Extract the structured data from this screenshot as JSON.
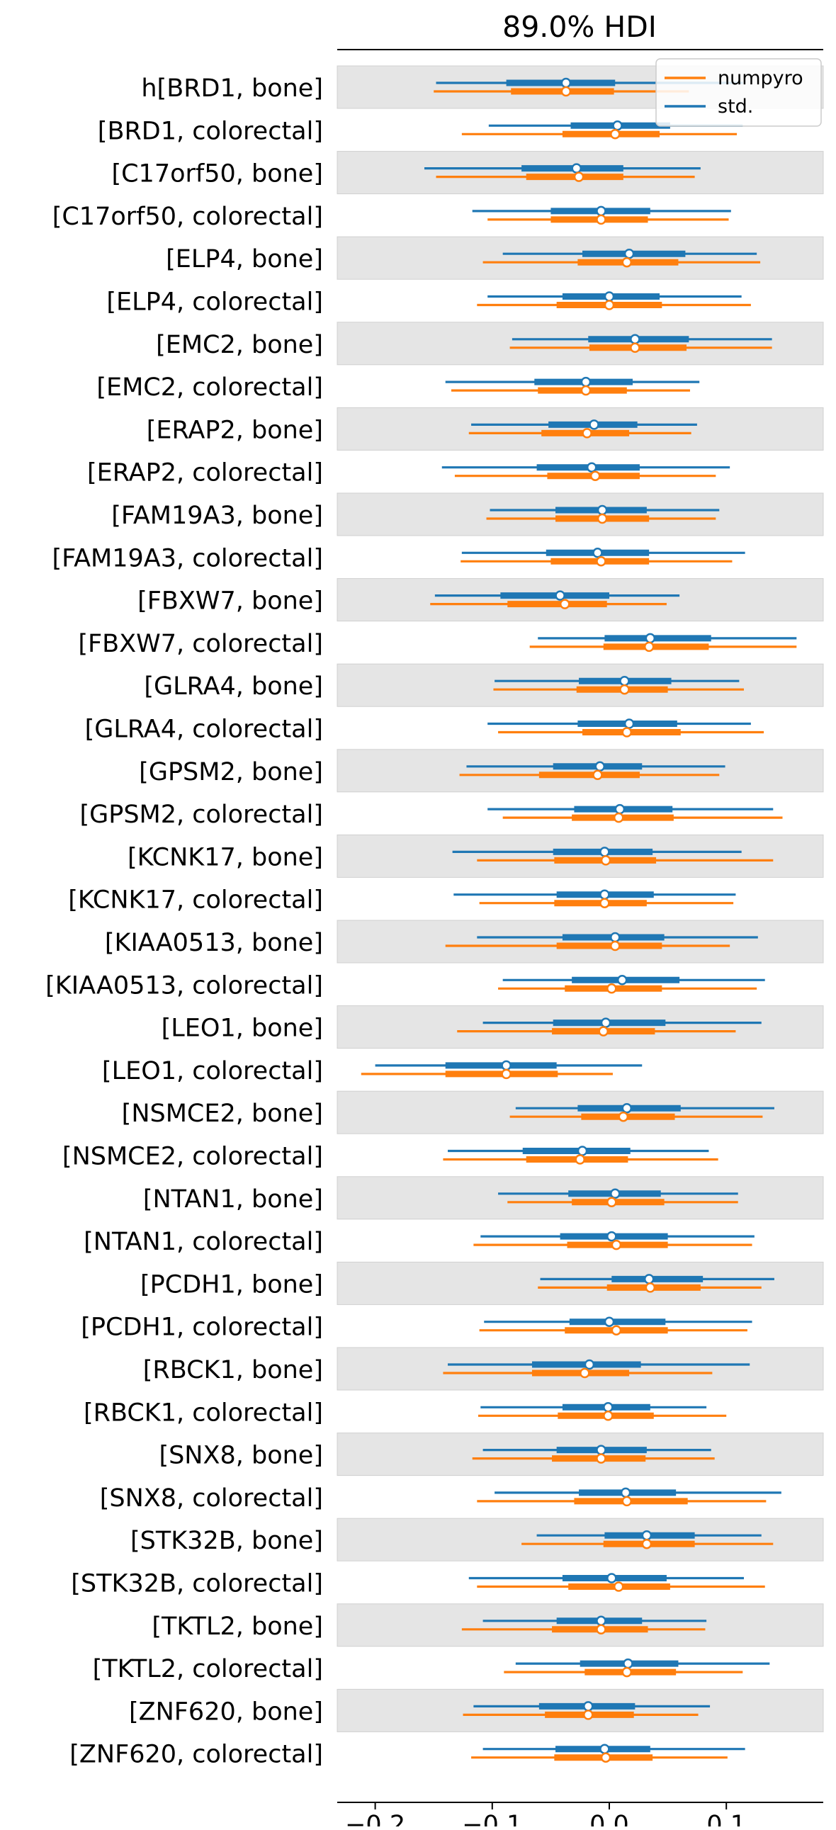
{
  "chart_data": {
    "type": "forest",
    "title": "89.0% HDI",
    "xlabel": "",
    "ylabel": "",
    "xlim": [
      -0.235,
      0.18
    ],
    "xticks": [
      -0.2,
      -0.1,
      0.0,
      0.1
    ],
    "xtick_labels": [
      "−0.2",
      "−0.1",
      "0.0",
      "0.1"
    ],
    "grid": false,
    "legend_position": "top-right",
    "row_labels": [
      "h[BRD1, bone]",
      "[BRD1, colorectal]",
      "[C17orf50, bone]",
      "[C17orf50, colorectal]",
      "[ELP4, bone]",
      "[ELP4, colorectal]",
      "[EMC2, bone]",
      "[EMC2, colorectal]",
      "[ERAP2, bone]",
      "[ERAP2, colorectal]",
      "[FAM19A3, bone]",
      "[FAM19A3, colorectal]",
      "[FBXW7, bone]",
      "[FBXW7, colorectal]",
      "[GLRA4, bone]",
      "[GLRA4, colorectal]",
      "[GPSM2, bone]",
      "[GPSM2, colorectal]",
      "[KCNK17, bone]",
      "[KCNK17, colorectal]",
      "[KIAA0513, bone]",
      "[KIAA0513, colorectal]",
      "[LEO1, bone]",
      "[LEO1, colorectal]",
      "[NSMCE2, bone]",
      "[NSMCE2, colorectal]",
      "[NTAN1, bone]",
      "[NTAN1, colorectal]",
      "[PCDH1, bone]",
      "[PCDH1, colorectal]",
      "[RBCK1, bone]",
      "[RBCK1, colorectal]",
      "[SNX8, bone]",
      "[SNX8, colorectal]",
      "[STK32B, bone]",
      "[STK32B, colorectal]",
      "[TKTL2, bone]",
      "[TKTL2, colorectal]",
      "[ZNF620, bone]",
      "[ZNF620, colorectal]"
    ],
    "series": [
      {
        "name": "std.",
        "color": "#1f77b4",
        "points": [
          {
            "hdi": [
              -0.148,
              0.114
            ],
            "iqr": [
              -0.088,
              0.005
            ],
            "median": -0.037
          },
          {
            "hdi": [
              -0.103,
              0.114
            ],
            "iqr": [
              -0.033,
              0.052
            ],
            "median": 0.007
          },
          {
            "hdi": [
              -0.158,
              0.078
            ],
            "iqr": [
              -0.075,
              0.012
            ],
            "median": -0.028
          },
          {
            "hdi": [
              -0.117,
              0.104
            ],
            "iqr": [
              -0.05,
              0.035
            ],
            "median": -0.007
          },
          {
            "hdi": [
              -0.091,
              0.126
            ],
            "iqr": [
              -0.023,
              0.065
            ],
            "median": 0.017
          },
          {
            "hdi": [
              -0.104,
              0.113
            ],
            "iqr": [
              -0.04,
              0.043
            ],
            "median": 0.0
          },
          {
            "hdi": [
              -0.083,
              0.139
            ],
            "iqr": [
              -0.018,
              0.068
            ],
            "median": 0.022
          },
          {
            "hdi": [
              -0.14,
              0.077
            ],
            "iqr": [
              -0.064,
              0.02
            ],
            "median": -0.02
          },
          {
            "hdi": [
              -0.118,
              0.075
            ],
            "iqr": [
              -0.052,
              0.024
            ],
            "median": -0.013
          },
          {
            "hdi": [
              -0.143,
              0.103
            ],
            "iqr": [
              -0.062,
              0.026
            ],
            "median": -0.015
          },
          {
            "hdi": [
              -0.102,
              0.094
            ],
            "iqr": [
              -0.046,
              0.032
            ],
            "median": -0.006
          },
          {
            "hdi": [
              -0.126,
              0.116
            ],
            "iqr": [
              -0.054,
              0.034
            ],
            "median": -0.01
          },
          {
            "hdi": [
              -0.149,
              0.06
            ],
            "iqr": [
              -0.093,
              0.0
            ],
            "median": -0.042
          },
          {
            "hdi": [
              -0.061,
              0.16
            ],
            "iqr": [
              -0.004,
              0.087
            ],
            "median": 0.035
          },
          {
            "hdi": [
              -0.098,
              0.111
            ],
            "iqr": [
              -0.026,
              0.053
            ],
            "median": 0.013
          },
          {
            "hdi": [
              -0.104,
              0.121
            ],
            "iqr": [
              -0.027,
              0.058
            ],
            "median": 0.017
          },
          {
            "hdi": [
              -0.122,
              0.099
            ],
            "iqr": [
              -0.048,
              0.028
            ],
            "median": -0.008
          },
          {
            "hdi": [
              -0.104,
              0.14
            ],
            "iqr": [
              -0.03,
              0.054
            ],
            "median": 0.009
          },
          {
            "hdi": [
              -0.134,
              0.113
            ],
            "iqr": [
              -0.048,
              0.037
            ],
            "median": -0.004
          },
          {
            "hdi": [
              -0.133,
              0.108
            ],
            "iqr": [
              -0.045,
              0.038
            ],
            "median": -0.004
          },
          {
            "hdi": [
              -0.113,
              0.127
            ],
            "iqr": [
              -0.04,
              0.047
            ],
            "median": 0.005
          },
          {
            "hdi": [
              -0.091,
              0.133
            ],
            "iqr": [
              -0.032,
              0.06
            ],
            "median": 0.011
          },
          {
            "hdi": [
              -0.108,
              0.13
            ],
            "iqr": [
              -0.048,
              0.048
            ],
            "median": -0.003
          },
          {
            "hdi": [
              -0.2,
              0.028
            ],
            "iqr": [
              -0.14,
              -0.045
            ],
            "median": -0.088
          },
          {
            "hdi": [
              -0.08,
              0.141
            ],
            "iqr": [
              -0.027,
              0.061
            ],
            "median": 0.015
          },
          {
            "hdi": [
              -0.138,
              0.085
            ],
            "iqr": [
              -0.074,
              0.018
            ],
            "median": -0.023
          },
          {
            "hdi": [
              -0.095,
              0.11
            ],
            "iqr": [
              -0.035,
              0.044
            ],
            "median": 0.005
          },
          {
            "hdi": [
              -0.11,
              0.124
            ],
            "iqr": [
              -0.042,
              0.05
            ],
            "median": 0.002
          },
          {
            "hdi": [
              -0.059,
              0.141
            ],
            "iqr": [
              0.002,
              0.08
            ],
            "median": 0.034
          },
          {
            "hdi": [
              -0.107,
              0.122
            ],
            "iqr": [
              -0.034,
              0.048
            ],
            "median": 0.0
          },
          {
            "hdi": [
              -0.138,
              0.12
            ],
            "iqr": [
              -0.066,
              0.027
            ],
            "median": -0.017
          },
          {
            "hdi": [
              -0.11,
              0.083
            ],
            "iqr": [
              -0.04,
              0.035
            ],
            "median": -0.001
          },
          {
            "hdi": [
              -0.108,
              0.087
            ],
            "iqr": [
              -0.045,
              0.032
            ],
            "median": -0.007
          },
          {
            "hdi": [
              -0.098,
              0.147
            ],
            "iqr": [
              -0.026,
              0.057
            ],
            "median": 0.014
          },
          {
            "hdi": [
              -0.062,
              0.13
            ],
            "iqr": [
              -0.004,
              0.073
            ],
            "median": 0.032
          },
          {
            "hdi": [
              -0.12,
              0.115
            ],
            "iqr": [
              -0.04,
              0.049
            ],
            "median": 0.002
          },
          {
            "hdi": [
              -0.108,
              0.083
            ],
            "iqr": [
              -0.045,
              0.028
            ],
            "median": -0.007
          },
          {
            "hdi": [
              -0.08,
              0.137
            ],
            "iqr": [
              -0.025,
              0.059
            ],
            "median": 0.016
          },
          {
            "hdi": [
              -0.116,
              0.086
            ],
            "iqr": [
              -0.06,
              0.022
            ],
            "median": -0.018
          },
          {
            "hdi": [
              -0.108,
              0.116
            ],
            "iqr": [
              -0.046,
              0.035
            ],
            "median": -0.004
          }
        ]
      },
      {
        "name": "numpyro",
        "color": "#ff7f0e",
        "points": [
          {
            "hdi": [
              -0.15,
              0.068
            ],
            "iqr": [
              -0.084,
              0.004
            ],
            "median": -0.037
          },
          {
            "hdi": [
              -0.126,
              0.109
            ],
            "iqr": [
              -0.04,
              0.043
            ],
            "median": 0.005
          },
          {
            "hdi": [
              -0.148,
              0.073
            ],
            "iqr": [
              -0.071,
              0.012
            ],
            "median": -0.026
          },
          {
            "hdi": [
              -0.104,
              0.102
            ],
            "iqr": [
              -0.05,
              0.033
            ],
            "median": -0.007
          },
          {
            "hdi": [
              -0.108,
              0.129
            ],
            "iqr": [
              -0.027,
              0.059
            ],
            "median": 0.015
          },
          {
            "hdi": [
              -0.113,
              0.121
            ],
            "iqr": [
              -0.045,
              0.045
            ],
            "median": 0.0
          },
          {
            "hdi": [
              -0.085,
              0.139
            ],
            "iqr": [
              -0.017,
              0.066
            ],
            "median": 0.022
          },
          {
            "hdi": [
              -0.135,
              0.069
            ],
            "iqr": [
              -0.061,
              0.015
            ],
            "median": -0.02
          },
          {
            "hdi": [
              -0.12,
              0.07
            ],
            "iqr": [
              -0.058,
              0.017
            ],
            "median": -0.019
          },
          {
            "hdi": [
              -0.132,
              0.091
            ],
            "iqr": [
              -0.053,
              0.026
            ],
            "median": -0.012
          },
          {
            "hdi": [
              -0.105,
              0.091
            ],
            "iqr": [
              -0.046,
              0.034
            ],
            "median": -0.006
          },
          {
            "hdi": [
              -0.127,
              0.105
            ],
            "iqr": [
              -0.05,
              0.034
            ],
            "median": -0.007
          },
          {
            "hdi": [
              -0.153,
              0.049
            ],
            "iqr": [
              -0.087,
              -0.002
            ],
            "median": -0.038
          },
          {
            "hdi": [
              -0.068,
              0.16
            ],
            "iqr": [
              -0.005,
              0.085
            ],
            "median": 0.034
          },
          {
            "hdi": [
              -0.099,
              0.115
            ],
            "iqr": [
              -0.028,
              0.05
            ],
            "median": 0.013
          },
          {
            "hdi": [
              -0.095,
              0.132
            ],
            "iqr": [
              -0.023,
              0.061
            ],
            "median": 0.015
          },
          {
            "hdi": [
              -0.128,
              0.094
            ],
            "iqr": [
              -0.06,
              0.026
            ],
            "median": -0.01
          },
          {
            "hdi": [
              -0.091,
              0.148
            ],
            "iqr": [
              -0.032,
              0.055
            ],
            "median": 0.008
          },
          {
            "hdi": [
              -0.113,
              0.14
            ],
            "iqr": [
              -0.047,
              0.04
            ],
            "median": -0.003
          },
          {
            "hdi": [
              -0.111,
              0.106
            ],
            "iqr": [
              -0.047,
              0.032
            ],
            "median": -0.004
          },
          {
            "hdi": [
              -0.14,
              0.103
            ],
            "iqr": [
              -0.045,
              0.045
            ],
            "median": 0.005
          },
          {
            "hdi": [
              -0.095,
              0.126
            ],
            "iqr": [
              -0.038,
              0.045
            ],
            "median": 0.002
          },
          {
            "hdi": [
              -0.13,
              0.108
            ],
            "iqr": [
              -0.049,
              0.039
            ],
            "median": -0.005
          },
          {
            "hdi": [
              -0.212,
              0.003
            ],
            "iqr": [
              -0.14,
              -0.044
            ],
            "median": -0.088
          },
          {
            "hdi": [
              -0.085,
              0.131
            ],
            "iqr": [
              -0.024,
              0.056
            ],
            "median": 0.012
          },
          {
            "hdi": [
              -0.142,
              0.093
            ],
            "iqr": [
              -0.071,
              0.016
            ],
            "median": -0.025
          },
          {
            "hdi": [
              -0.087,
              0.11
            ],
            "iqr": [
              -0.032,
              0.047
            ],
            "median": 0.002
          },
          {
            "hdi": [
              -0.116,
              0.122
            ],
            "iqr": [
              -0.036,
              0.05
            ],
            "median": 0.006
          },
          {
            "hdi": [
              -0.061,
              0.13
            ],
            "iqr": [
              -0.002,
              0.078
            ],
            "median": 0.035
          },
          {
            "hdi": [
              -0.111,
              0.118
            ],
            "iqr": [
              -0.038,
              0.05
            ],
            "median": 0.006
          },
          {
            "hdi": [
              -0.142,
              0.088
            ],
            "iqr": [
              -0.066,
              0.017
            ],
            "median": -0.021
          },
          {
            "hdi": [
              -0.112,
              0.1
            ],
            "iqr": [
              -0.044,
              0.038
            ],
            "median": -0.001
          },
          {
            "hdi": [
              -0.117,
              0.09
            ],
            "iqr": [
              -0.049,
              0.031
            ],
            "median": -0.007
          },
          {
            "hdi": [
              -0.113,
              0.134
            ],
            "iqr": [
              -0.03,
              0.067
            ],
            "median": 0.015
          },
          {
            "hdi": [
              -0.075,
              0.14
            ],
            "iqr": [
              -0.005,
              0.073
            ],
            "median": 0.032
          },
          {
            "hdi": [
              -0.113,
              0.133
            ],
            "iqr": [
              -0.035,
              0.052
            ],
            "median": 0.008
          },
          {
            "hdi": [
              -0.126,
              0.082
            ],
            "iqr": [
              -0.049,
              0.033
            ],
            "median": -0.007
          },
          {
            "hdi": [
              -0.09,
              0.114
            ],
            "iqr": [
              -0.021,
              0.057
            ],
            "median": 0.015
          },
          {
            "hdi": [
              -0.125,
              0.076
            ],
            "iqr": [
              -0.055,
              0.021
            ],
            "median": -0.018
          },
          {
            "hdi": [
              -0.118,
              0.101
            ],
            "iqr": [
              -0.047,
              0.037
            ],
            "median": -0.003
          }
        ]
      }
    ],
    "legend": [
      "numpyro",
      "std."
    ],
    "row_band_color": "#e5e5e5",
    "row_band_every": "odd rows shaded (bone)"
  }
}
